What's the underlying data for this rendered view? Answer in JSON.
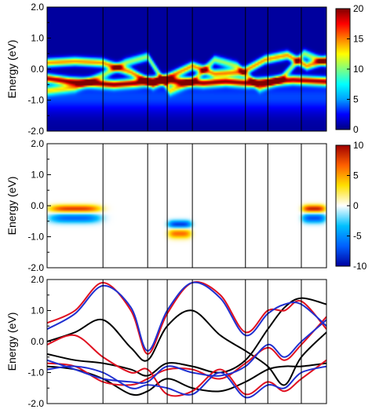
{
  "colors": {
    "heatmap_map": [
      "#00007f",
      "#0000ff",
      "#00a0ff",
      "#00ffff",
      "#7fff7f",
      "#ffff00",
      "#ff8000",
      "#ff0000",
      "#7f0000"
    ],
    "diverging_map": [
      "#0000a0",
      "#0060ff",
      "#00c0ff",
      "#ffffff",
      "#ffe000",
      "#ff6000",
      "#a00000"
    ],
    "line_black": "#000000",
    "line_red": "#e01020",
    "line_blue": "#2030d0"
  },
  "chart_data": [
    {
      "type": "heatmap",
      "ylabel": "Energy (eV)",
      "ylim": [
        -2.0,
        2.0
      ],
      "y_ticks": [
        "2.0",
        "1.0",
        "0.0",
        "-1.0",
        "-2.0"
      ],
      "colorbar": {
        "min": 0,
        "max": 20,
        "ticks": [
          "20",
          "15",
          "10",
          "5",
          "0"
        ]
      },
      "k_path_divisions": [
        0.2,
        0.36,
        0.43,
        0.52,
        0.71,
        0.79,
        0.91
      ],
      "bands_described": [
        {
          "points": [
            [
              0,
              -0.3
            ],
            [
              0.08,
              -0.4
            ],
            [
              0.16,
              -0.45
            ],
            [
              0.24,
              -0.5
            ],
            [
              0.32,
              -0.45
            ],
            [
              0.4,
              -0.35
            ],
            [
              0.48,
              -0.4
            ],
            [
              0.56,
              -0.45
            ],
            [
              0.64,
              -0.4
            ],
            [
              0.72,
              -0.45
            ],
            [
              0.8,
              -0.4
            ],
            [
              0.88,
              -0.35
            ],
            [
              1,
              -0.4
            ]
          ],
          "intensity": 18
        },
        {
          "points": [
            [
              0,
              0.2
            ],
            [
              0.1,
              0.25
            ],
            [
              0.2,
              0.2
            ],
            [
              0.3,
              -0.1
            ],
            [
              0.38,
              -0.5
            ],
            [
              0.45,
              -0.2
            ],
            [
              0.52,
              0.1
            ],
            [
              0.6,
              -0.15
            ],
            [
              0.7,
              -0.1
            ],
            [
              0.78,
              0.3
            ],
            [
              0.86,
              0.45
            ],
            [
              0.93,
              0.1
            ],
            [
              1,
              0.3
            ]
          ],
          "intensity": 14
        },
        {
          "points": [
            [
              0,
              -0.7
            ],
            [
              0.1,
              -0.6
            ],
            [
              0.2,
              -0.2
            ],
            [
              0.28,
              0.2
            ],
            [
              0.36,
              0.4
            ],
            [
              0.44,
              -0.7
            ],
            [
              0.52,
              -0.4
            ],
            [
              0.6,
              0.3
            ],
            [
              0.68,
              0.1
            ],
            [
              0.76,
              -0.6
            ],
            [
              0.84,
              -0.3
            ],
            [
              0.92,
              0.5
            ],
            [
              1,
              0.2
            ]
          ],
          "intensity": 10
        }
      ]
    },
    {
      "type": "heatmap",
      "ylabel": "Energy (eV)",
      "ylim": [
        -2.0,
        2.0
      ],
      "y_ticks": [
        "2.0",
        "1.0",
        "0.0",
        "-1.0",
        "-2.0"
      ],
      "colorbar": {
        "min": -10,
        "max": 10,
        "ticks": [
          "10",
          "5",
          "0",
          "-5",
          "-10"
        ]
      },
      "k_path_divisions": [
        0.2,
        0.36,
        0.43,
        0.52,
        0.71,
        0.79,
        0.91
      ],
      "features_described": [
        {
          "x_range": [
            0.0,
            0.2
          ],
          "center_energy": -0.1,
          "amplitude": 8
        },
        {
          "x_range": [
            0.43,
            0.52
          ],
          "center_energy": -0.6,
          "amplitude": -8
        },
        {
          "x_range": [
            0.91,
            1.0
          ],
          "center_energy": -0.1,
          "amplitude": 9
        }
      ]
    },
    {
      "type": "line",
      "ylabel": "Energy (eV)",
      "ylim": [
        -2.0,
        2.0
      ],
      "y_ticks": [
        "2.0",
        "1.0",
        "0.0",
        "-1.0",
        "-2.0"
      ],
      "k_path_divisions": [
        0.2,
        0.36,
        0.43,
        0.52,
        0.71,
        0.79,
        0.91
      ],
      "series": [
        {
          "color": "black",
          "x": [
            0,
            0.1,
            0.2,
            0.3,
            0.36,
            0.43,
            0.52,
            0.62,
            0.71,
            0.79,
            0.85,
            0.91,
            1
          ],
          "values": [
            0.0,
            0.3,
            0.7,
            -0.2,
            -0.6,
            0.5,
            1.0,
            0.2,
            -0.3,
            -0.8,
            -1.4,
            -0.5,
            0.3
          ]
        },
        {
          "color": "black",
          "x": [
            0,
            0.1,
            0.2,
            0.3,
            0.36,
            0.43,
            0.52,
            0.62,
            0.71,
            0.79,
            0.85,
            0.91,
            1
          ],
          "values": [
            -0.4,
            -0.6,
            -0.7,
            -0.9,
            -1.1,
            -0.7,
            -0.8,
            -1.0,
            -0.6,
            0.4,
            1.1,
            1.4,
            1.2
          ]
        },
        {
          "color": "black",
          "x": [
            0,
            0.1,
            0.2,
            0.3,
            0.36,
            0.43,
            0.52,
            0.62,
            0.71,
            0.79,
            0.85,
            0.91,
            1
          ],
          "values": [
            -0.8,
            -0.9,
            -1.2,
            -1.7,
            -1.6,
            -1.2,
            -1.5,
            -1.6,
            -1.3,
            -0.9,
            -0.8,
            -0.8,
            -0.7
          ]
        },
        {
          "color": "red",
          "x": [
            0,
            0.1,
            0.2,
            0.3,
            0.36,
            0.43,
            0.52,
            0.62,
            0.71,
            0.79,
            0.85,
            0.91,
            1
          ],
          "values": [
            0.6,
            1.0,
            1.9,
            1.0,
            -0.4,
            0.9,
            1.9,
            1.5,
            0.3,
            1.0,
            1.0,
            1.3,
            0.4
          ]
        },
        {
          "color": "red",
          "x": [
            0,
            0.1,
            0.2,
            0.3,
            0.36,
            0.43,
            0.52,
            0.62,
            0.71,
            0.79,
            0.85,
            0.91,
            1
          ],
          "values": [
            -0.7,
            -0.8,
            -1.3,
            -1.4,
            -1.2,
            -0.9,
            -0.9,
            -1.2,
            -0.7,
            -0.2,
            -0.6,
            -0.1,
            0.8
          ]
        },
        {
          "color": "red",
          "x": [
            0,
            0.1,
            0.2,
            0.3,
            0.36,
            0.43,
            0.52,
            0.62,
            0.71,
            0.79,
            0.85,
            0.91,
            1
          ],
          "values": [
            -0.1,
            0.2,
            -0.5,
            -1.0,
            -0.9,
            -1.7,
            -1.6,
            -0.9,
            -1.7,
            -1.3,
            -1.6,
            -1.2,
            -0.6
          ]
        },
        {
          "color": "blue",
          "x": [
            0,
            0.1,
            0.2,
            0.3,
            0.36,
            0.43,
            0.52,
            0.62,
            0.71,
            0.79,
            0.85,
            0.91,
            1
          ],
          "values": [
            0.4,
            0.9,
            1.8,
            1.1,
            -0.3,
            1.0,
            1.9,
            1.4,
            0.2,
            0.9,
            1.2,
            1.2,
            0.5
          ]
        },
        {
          "color": "blue",
          "x": [
            0,
            0.1,
            0.2,
            0.3,
            0.36,
            0.43,
            0.52,
            0.62,
            0.71,
            0.79,
            0.85,
            0.91,
            1
          ],
          "values": [
            -0.6,
            -0.9,
            -1.2,
            -1.3,
            -1.3,
            -0.8,
            -1.0,
            -1.1,
            -0.8,
            -0.1,
            -0.5,
            0.0,
            0.7
          ]
        },
        {
          "color": "blue",
          "x": [
            0,
            0.1,
            0.2,
            0.3,
            0.36,
            0.43,
            0.52,
            0.62,
            0.71,
            0.79,
            0.85,
            0.91,
            1
          ],
          "values": [
            -0.9,
            -0.8,
            -1.0,
            -1.5,
            -1.4,
            -1.5,
            -1.7,
            -1.0,
            -1.8,
            -1.4,
            -1.5,
            -1.0,
            -0.8
          ]
        }
      ]
    }
  ]
}
